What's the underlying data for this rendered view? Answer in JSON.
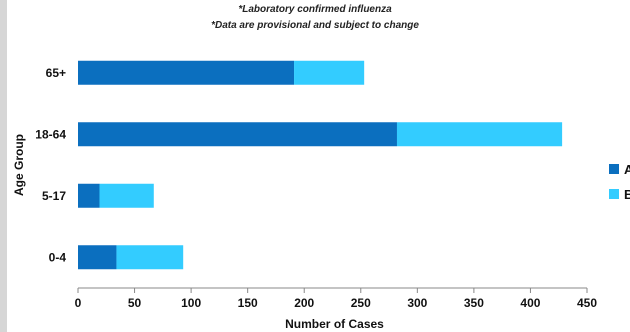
{
  "subtitles": [
    "*Laboratory confirmed influenza",
    "*Data are provisional and subject to change"
  ],
  "chart_data": {
    "type": "bar",
    "orientation": "horizontal",
    "stacked": true,
    "categories": [
      "65+",
      "18-64",
      "5-17",
      "0-4"
    ],
    "series": [
      {
        "name": "A",
        "color": "#0b6fbf",
        "values": [
          191,
          282,
          19,
          34
        ]
      },
      {
        "name": "B",
        "color": "#33ccff",
        "values": [
          62,
          146,
          48,
          59
        ]
      }
    ],
    "xlabel": "Number of Cases",
    "ylabel": "Age Group",
    "xlim": [
      0,
      450
    ],
    "xticks": [
      0,
      50,
      100,
      150,
      200,
      250,
      300,
      350,
      400,
      450
    ],
    "grid": false,
    "legend": "right"
  }
}
